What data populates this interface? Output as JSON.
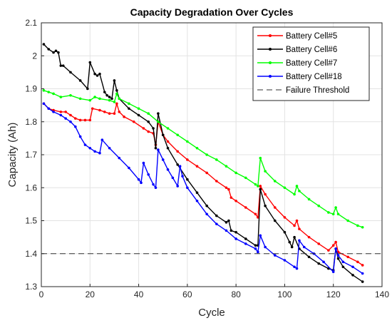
{
  "chart_data": {
    "type": "line",
    "title": "Capacity Degradation Over Cycles",
    "xlabel": "Cycle",
    "ylabel": "Capacity (Ah)",
    "xlim": [
      0,
      140
    ],
    "ylim": [
      1.3,
      2.1
    ],
    "xticks": [
      0,
      20,
      40,
      60,
      80,
      100,
      120,
      140
    ],
    "yticks": [
      1.3,
      1.4,
      1.5,
      1.6,
      1.7,
      1.8,
      1.9,
      2.0,
      2.1
    ],
    "xtick_labels": [
      "0",
      "20",
      "40",
      "60",
      "80",
      "100",
      "120",
      "140"
    ],
    "ytick_labels": [
      "1.3",
      "1.4",
      "1.5",
      "1.6",
      "1.7",
      "1.8",
      "1.9",
      "2",
      "2.1"
    ],
    "grid": true,
    "legend_location": "top-right",
    "series": [
      {
        "name": "Battery Cell#5",
        "color": "#ff0000",
        "x": [
          1,
          3,
          5,
          8,
          10,
          12,
          14,
          16,
          18,
          20,
          21,
          24,
          26,
          28,
          30,
          31,
          32,
          34,
          38,
          42,
          44,
          46,
          47,
          48,
          50,
          52,
          56,
          60,
          64,
          68,
          72,
          76,
          77,
          78,
          80,
          84,
          88,
          89,
          90,
          92,
          96,
          100,
          104,
          105,
          106,
          110,
          114,
          118,
          120,
          121,
          122,
          126,
          130,
          132
        ],
        "values": [
          1.855,
          1.84,
          1.835,
          1.83,
          1.83,
          1.82,
          1.81,
          1.805,
          1.805,
          1.805,
          1.84,
          1.835,
          1.83,
          1.825,
          1.825,
          1.855,
          1.83,
          1.815,
          1.8,
          1.78,
          1.77,
          1.765,
          1.73,
          1.8,
          1.76,
          1.74,
          1.71,
          1.685,
          1.665,
          1.645,
          1.62,
          1.6,
          1.595,
          1.57,
          1.56,
          1.54,
          1.52,
          1.51,
          1.605,
          1.58,
          1.54,
          1.51,
          1.485,
          1.5,
          1.475,
          1.45,
          1.43,
          1.41,
          1.425,
          1.435,
          1.405,
          1.39,
          1.375,
          1.365
        ]
      },
      {
        "name": "Battery Cell#6",
        "color": "#000000",
        "x": [
          1,
          3,
          5,
          6,
          7,
          8,
          9,
          12,
          16,
          19,
          20,
          22,
          23,
          24,
          26,
          27,
          28,
          29,
          30,
          31,
          32,
          36,
          40,
          44,
          46,
          47,
          48,
          50,
          52,
          56,
          60,
          64,
          68,
          72,
          76,
          77,
          78,
          80,
          84,
          88,
          89,
          90,
          92,
          96,
          100,
          102,
          103,
          104,
          106,
          110,
          114,
          118,
          120,
          121,
          122,
          124,
          128,
          132
        ],
        "values": [
          2.035,
          2.02,
          2.01,
          2.015,
          2.01,
          1.97,
          1.97,
          1.95,
          1.925,
          1.9,
          1.98,
          1.945,
          1.94,
          1.945,
          1.89,
          1.88,
          1.875,
          1.87,
          1.925,
          1.895,
          1.87,
          1.84,
          1.82,
          1.8,
          1.78,
          1.72,
          1.825,
          1.76,
          1.72,
          1.67,
          1.625,
          1.585,
          1.545,
          1.515,
          1.495,
          1.5,
          1.47,
          1.465,
          1.445,
          1.425,
          1.425,
          1.595,
          1.545,
          1.5,
          1.465,
          1.435,
          1.42,
          1.45,
          1.415,
          1.39,
          1.37,
          1.355,
          1.35,
          1.415,
          1.385,
          1.36,
          1.335,
          1.315
        ]
      },
      {
        "name": "Battery Cell#7",
        "color": "#00ff00",
        "x": [
          1,
          3,
          5,
          8,
          12,
          16,
          20,
          22,
          24,
          28,
          30,
          31,
          32,
          36,
          40,
          44,
          48,
          52,
          56,
          60,
          64,
          68,
          72,
          76,
          80,
          84,
          88,
          89,
          90,
          92,
          96,
          100,
          104,
          105,
          106,
          110,
          114,
          118,
          120,
          121,
          122,
          126,
          130,
          132
        ],
        "values": [
          1.895,
          1.89,
          1.885,
          1.875,
          1.88,
          1.87,
          1.865,
          1.875,
          1.87,
          1.865,
          1.86,
          1.885,
          1.87,
          1.855,
          1.84,
          1.825,
          1.8,
          1.78,
          1.76,
          1.74,
          1.72,
          1.7,
          1.685,
          1.665,
          1.645,
          1.63,
          1.61,
          1.605,
          1.69,
          1.65,
          1.62,
          1.6,
          1.58,
          1.605,
          1.59,
          1.565,
          1.545,
          1.525,
          1.52,
          1.54,
          1.52,
          1.5,
          1.485,
          1.48
        ]
      },
      {
        "name": "Battery Cell#18",
        "color": "#0000ff",
        "x": [
          1,
          3,
          5,
          8,
          10,
          12,
          14,
          16,
          18,
          20,
          22,
          24,
          25,
          28,
          32,
          36,
          40,
          41,
          42,
          44,
          46,
          47,
          48,
          50,
          52,
          54,
          56,
          57,
          58,
          60,
          64,
          68,
          72,
          76,
          80,
          84,
          88,
          89,
          90,
          92,
          96,
          100,
          104,
          105,
          106,
          108,
          112,
          116,
          120,
          121,
          122,
          124,
          128,
          132
        ],
        "values": [
          1.855,
          1.84,
          1.83,
          1.82,
          1.81,
          1.8,
          1.785,
          1.755,
          1.73,
          1.72,
          1.71,
          1.705,
          1.745,
          1.72,
          1.69,
          1.66,
          1.625,
          1.615,
          1.675,
          1.64,
          1.61,
          1.6,
          1.715,
          1.685,
          1.655,
          1.63,
          1.605,
          1.665,
          1.635,
          1.6,
          1.56,
          1.52,
          1.49,
          1.47,
          1.445,
          1.43,
          1.415,
          1.405,
          1.455,
          1.42,
          1.395,
          1.38,
          1.36,
          1.355,
          1.44,
          1.42,
          1.4,
          1.375,
          1.345,
          1.415,
          1.395,
          1.375,
          1.36,
          1.34
        ]
      },
      {
        "name": "Failure Threshold",
        "color": "#333333",
        "dashed": true,
        "x": [
          0,
          140
        ],
        "values": [
          1.4,
          1.4
        ]
      }
    ]
  }
}
